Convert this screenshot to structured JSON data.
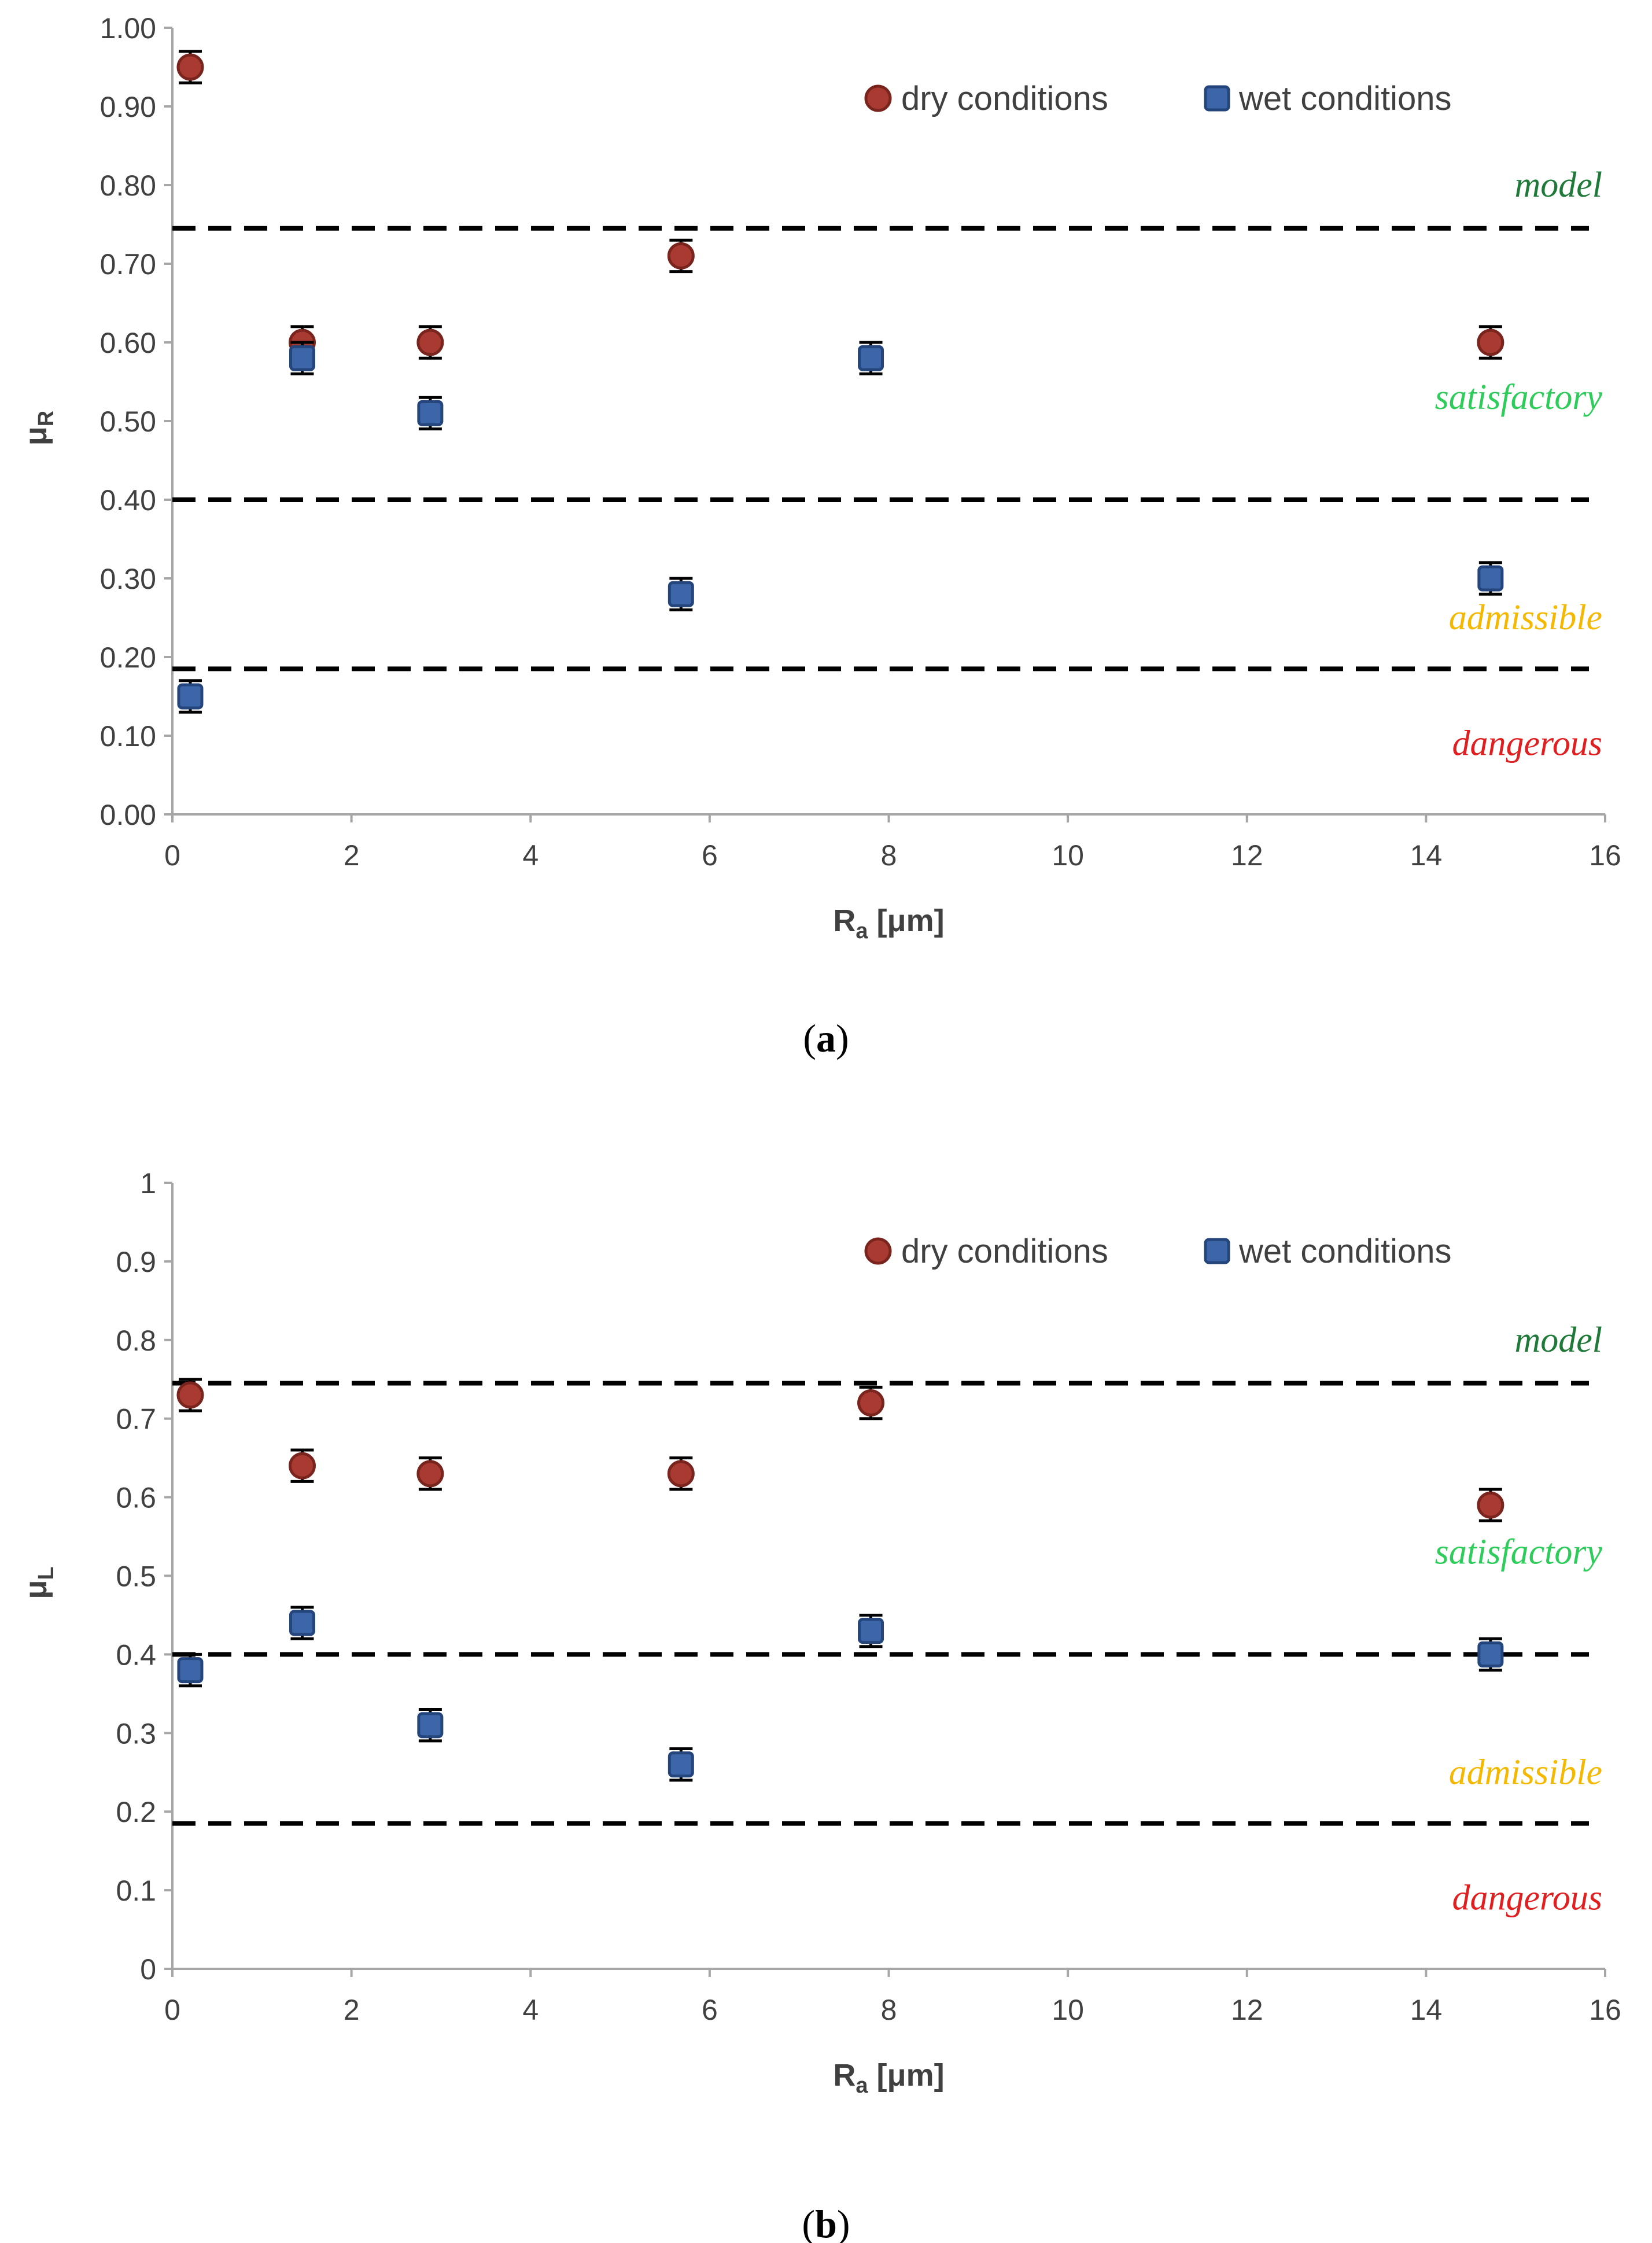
{
  "colors": {
    "dry": "#a83a32",
    "dry_edge": "#7a241e",
    "wet": "#3c66a8",
    "wet_edge": "#24467c",
    "axis": "#a6a6a6",
    "text": "#404040",
    "model": "#1f7a3a",
    "satisfactory": "#2ecc5a",
    "admissible": "#f5b800",
    "dangerous": "#e02020"
  },
  "chart_data": [
    {
      "type": "scatter",
      "caption_letter": "a",
      "ylabel_main": "μ",
      "ylabel_sub": "R",
      "xlabel_main": "R",
      "xlabel_sub": "a",
      "xlabel_unit": " [μm]",
      "xlim": [
        0,
        16
      ],
      "ylim": [
        0,
        1
      ],
      "x_ticks": [
        "0",
        "2",
        "4",
        "6",
        "8",
        "10",
        "12",
        "14",
        "16"
      ],
      "y_ticks": [
        "0.00",
        "0.10",
        "0.20",
        "0.30",
        "0.40",
        "0.50",
        "0.60",
        "0.70",
        "0.80",
        "0.90",
        "1.00"
      ],
      "thresholds": [
        0.745,
        0.4,
        0.185
      ],
      "zones": [
        {
          "label": "model",
          "y": 0.8,
          "color_key": "model"
        },
        {
          "label": "satisfactory",
          "y": 0.53,
          "color_key": "satisfactory"
        },
        {
          "label": "admissible",
          "y": 0.25,
          "color_key": "admissible"
        },
        {
          "label": "dangerous",
          "y": 0.09,
          "color_key": "dangerous"
        }
      ],
      "legend": [
        "dry conditions",
        "wet conditions"
      ],
      "series": [
        {
          "name": "dry conditions",
          "marker": "circle",
          "x": [
            0.2,
            1.45,
            2.88,
            5.68,
            14.72
          ],
          "y": [
            0.95,
            0.6,
            0.6,
            0.71,
            0.6
          ],
          "err": [
            0.02,
            0.02,
            0.02,
            0.02,
            0.02
          ]
        },
        {
          "name": "wet conditions",
          "marker": "square",
          "x": [
            0.2,
            1.45,
            2.88,
            5.68,
            7.8,
            14.72
          ],
          "y": [
            0.15,
            0.58,
            0.51,
            0.28,
            0.58,
            0.3
          ],
          "err": [
            0.02,
            0.02,
            0.02,
            0.02,
            0.02,
            0.02
          ]
        }
      ]
    },
    {
      "type": "scatter",
      "caption_letter": "b",
      "ylabel_main": "μ",
      "ylabel_sub": "L",
      "xlabel_main": "R",
      "xlabel_sub": "a",
      "xlabel_unit": " [μm]",
      "xlim": [
        0,
        16
      ],
      "ylim": [
        0,
        1
      ],
      "x_ticks": [
        "0",
        "2",
        "4",
        "6",
        "8",
        "10",
        "12",
        "14",
        "16"
      ],
      "y_ticks": [
        "0",
        "0.1",
        "0.2",
        "0.3",
        "0.4",
        "0.5",
        "0.6",
        "0.7",
        "0.8",
        "0.9",
        "1"
      ],
      "thresholds": [
        0.745,
        0.4,
        0.185
      ],
      "zones": [
        {
          "label": "model",
          "y": 0.8,
          "color_key": "model"
        },
        {
          "label": "satisfactory",
          "y": 0.53,
          "color_key": "satisfactory"
        },
        {
          "label": "admissible",
          "y": 0.25,
          "color_key": "admissible"
        },
        {
          "label": "dangerous",
          "y": 0.09,
          "color_key": "dangerous"
        }
      ],
      "legend": [
        "dry conditions",
        "wet conditions"
      ],
      "series": [
        {
          "name": "dry conditions",
          "marker": "circle",
          "x": [
            0.2,
            1.45,
            2.88,
            5.68,
            7.8,
            14.72
          ],
          "y": [
            0.73,
            0.64,
            0.63,
            0.63,
            0.72,
            0.59
          ],
          "err": [
            0.02,
            0.02,
            0.02,
            0.02,
            0.02,
            0.02
          ]
        },
        {
          "name": "wet conditions",
          "marker": "square",
          "x": [
            0.2,
            1.45,
            2.88,
            5.68,
            7.8,
            14.72
          ],
          "y": [
            0.38,
            0.44,
            0.31,
            0.26,
            0.43,
            0.4
          ],
          "err": [
            0.02,
            0.02,
            0.02,
            0.02,
            0.02,
            0.02
          ]
        }
      ]
    }
  ]
}
